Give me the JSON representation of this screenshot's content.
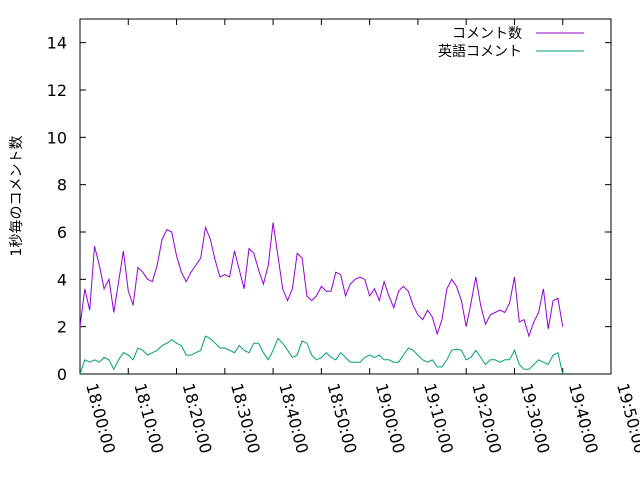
{
  "chart_data": {
    "type": "line",
    "title": "",
    "xlabel": "",
    "ylabel": "1秒毎のコメント数",
    "xlim": [
      "18:00:00",
      "19:50:00"
    ],
    "ylim": [
      0,
      15
    ],
    "x_ticks": [
      "18:00:00",
      "18:10:00",
      "18:20:00",
      "18:30:00",
      "18:40:00",
      "18:50:00",
      "19:00:00",
      "19:10:00",
      "19:20:00",
      "19:30:00",
      "19:40:00",
      "19:50:00"
    ],
    "y_ticks": [
      "0",
      "2",
      "4",
      "6",
      "8",
      "10",
      "12",
      "14"
    ],
    "legend_position": "top-right",
    "grid": false,
    "series": [
      {
        "name": "コメント数",
        "color": "#9400d3",
        "points": [
          [
            "18:00:00",
            2.0
          ],
          [
            "18:01:00",
            3.6
          ],
          [
            "18:02:00",
            2.7
          ],
          [
            "18:03:00",
            5.4
          ],
          [
            "18:04:00",
            4.6
          ],
          [
            "18:05:00",
            3.6
          ],
          [
            "18:06:00",
            4.0
          ],
          [
            "18:07:00",
            2.6
          ],
          [
            "18:08:00",
            3.9
          ],
          [
            "18:09:00",
            5.2
          ],
          [
            "18:10:00",
            3.5
          ],
          [
            "18:11:00",
            2.9
          ],
          [
            "18:12:00",
            4.5
          ],
          [
            "18:13:00",
            4.3
          ],
          [
            "18:14:00",
            4.0
          ],
          [
            "18:15:00",
            3.9
          ],
          [
            "18:16:00",
            4.6
          ],
          [
            "18:17:00",
            5.7
          ],
          [
            "18:18:00",
            6.1
          ],
          [
            "18:19:00",
            6.0
          ],
          [
            "18:20:00",
            5.0
          ],
          [
            "18:21:00",
            4.3
          ],
          [
            "18:22:00",
            3.9
          ],
          [
            "18:23:00",
            4.3
          ],
          [
            "18:24:00",
            4.6
          ],
          [
            "18:25:00",
            4.9
          ],
          [
            "18:26:00",
            6.2
          ],
          [
            "18:27:00",
            5.7
          ],
          [
            "18:28:00",
            4.8
          ],
          [
            "18:29:00",
            4.1
          ],
          [
            "18:30:00",
            4.2
          ],
          [
            "18:31:00",
            4.1
          ],
          [
            "18:32:00",
            5.2
          ],
          [
            "18:33:00",
            4.4
          ],
          [
            "18:34:00",
            3.6
          ],
          [
            "18:35:00",
            5.3
          ],
          [
            "18:36:00",
            5.1
          ],
          [
            "18:37:00",
            4.4
          ],
          [
            "18:38:00",
            3.8
          ],
          [
            "18:39:00",
            4.6
          ],
          [
            "18:40:00",
            6.4
          ],
          [
            "18:41:00",
            5.0
          ],
          [
            "18:42:00",
            3.6
          ],
          [
            "18:43:00",
            3.1
          ],
          [
            "18:44:00",
            3.6
          ],
          [
            "18:45:00",
            5.1
          ],
          [
            "18:46:00",
            4.9
          ],
          [
            "18:47:00",
            3.3
          ],
          [
            "18:48:00",
            3.1
          ],
          [
            "18:49:00",
            3.3
          ],
          [
            "18:50:00",
            3.7
          ],
          [
            "18:51:00",
            3.5
          ],
          [
            "18:52:00",
            3.5
          ],
          [
            "18:53:00",
            4.3
          ],
          [
            "18:54:00",
            4.2
          ],
          [
            "18:55:00",
            3.3
          ],
          [
            "18:56:00",
            3.8
          ],
          [
            "18:57:00",
            4.0
          ],
          [
            "18:58:00",
            4.1
          ],
          [
            "18:59:00",
            4.0
          ],
          [
            "19:00:00",
            3.3
          ],
          [
            "19:01:00",
            3.6
          ],
          [
            "19:02:00",
            3.1
          ],
          [
            "19:03:00",
            3.9
          ],
          [
            "19:04:00",
            3.3
          ],
          [
            "19:05:00",
            2.8
          ],
          [
            "19:06:00",
            3.5
          ],
          [
            "19:07:00",
            3.7
          ],
          [
            "19:08:00",
            3.5
          ],
          [
            "19:09:00",
            2.9
          ],
          [
            "19:10:00",
            2.5
          ],
          [
            "19:11:00",
            2.3
          ],
          [
            "19:12:00",
            2.7
          ],
          [
            "19:13:00",
            2.4
          ],
          [
            "19:14:00",
            1.7
          ],
          [
            "19:15:00",
            2.3
          ],
          [
            "19:16:00",
            3.6
          ],
          [
            "19:17:00",
            4.0
          ],
          [
            "19:18:00",
            3.7
          ],
          [
            "19:19:00",
            3.1
          ],
          [
            "19:20:00",
            2.0
          ],
          [
            "19:21:00",
            3.0
          ],
          [
            "19:22:00",
            4.1
          ],
          [
            "19:23:00",
            2.9
          ],
          [
            "19:24:00",
            2.1
          ],
          [
            "19:25:00",
            2.5
          ],
          [
            "19:26:00",
            2.6
          ],
          [
            "19:27:00",
            2.7
          ],
          [
            "19:28:00",
            2.6
          ],
          [
            "19:29:00",
            3.0
          ],
          [
            "19:30:00",
            4.1
          ],
          [
            "19:31:00",
            2.2
          ],
          [
            "19:32:00",
            2.3
          ],
          [
            "19:33:00",
            1.6
          ],
          [
            "19:34:00",
            2.2
          ],
          [
            "19:35:00",
            2.6
          ],
          [
            "19:36:00",
            3.6
          ],
          [
            "19:37:00",
            1.9
          ],
          [
            "19:38:00",
            3.1
          ],
          [
            "19:39:00",
            3.2
          ],
          [
            "19:40:00",
            2.0
          ]
        ]
      },
      {
        "name": "英語コメント",
        "color": "#009e73",
        "points": [
          [
            "18:00:00",
            0.0
          ],
          [
            "18:01:00",
            0.6
          ],
          [
            "18:02:00",
            0.5
          ],
          [
            "18:03:00",
            0.6
          ],
          [
            "18:04:00",
            0.5
          ],
          [
            "18:05:00",
            0.7
          ],
          [
            "18:06:00",
            0.6
          ],
          [
            "18:07:00",
            0.2
          ],
          [
            "18:08:00",
            0.6
          ],
          [
            "18:09:00",
            0.9
          ],
          [
            "18:10:00",
            0.8
          ],
          [
            "18:11:00",
            0.6
          ],
          [
            "18:12:00",
            1.1
          ],
          [
            "18:13:00",
            1.0
          ],
          [
            "18:14:00",
            0.8
          ],
          [
            "18:15:00",
            0.9
          ],
          [
            "18:16:00",
            1.0
          ],
          [
            "18:17:00",
            1.2
          ],
          [
            "18:18:00",
            1.3
          ],
          [
            "18:19:00",
            1.45
          ],
          [
            "18:20:00",
            1.3
          ],
          [
            "18:21:00",
            1.2
          ],
          [
            "18:22:00",
            0.8
          ],
          [
            "18:23:00",
            0.8
          ],
          [
            "18:24:00",
            0.9
          ],
          [
            "18:25:00",
            1.0
          ],
          [
            "18:26:00",
            1.6
          ],
          [
            "18:27:00",
            1.5
          ],
          [
            "18:28:00",
            1.3
          ],
          [
            "18:29:00",
            1.1
          ],
          [
            "18:30:00",
            1.1
          ],
          [
            "18:31:00",
            1.0
          ],
          [
            "18:32:00",
            0.9
          ],
          [
            "18:33:00",
            1.2
          ],
          [
            "18:34:00",
            1.0
          ],
          [
            "18:35:00",
            0.9
          ],
          [
            "18:36:00",
            1.3
          ],
          [
            "18:37:00",
            1.3
          ],
          [
            "18:38:00",
            0.9
          ],
          [
            "18:39:00",
            0.6
          ],
          [
            "18:40:00",
            1.0
          ],
          [
            "18:41:00",
            1.5
          ],
          [
            "18:42:00",
            1.3
          ],
          [
            "18:43:00",
            1.0
          ],
          [
            "18:44:00",
            0.7
          ],
          [
            "18:45:00",
            0.8
          ],
          [
            "18:46:00",
            1.4
          ],
          [
            "18:47:00",
            1.3
          ],
          [
            "18:48:00",
            0.8
          ],
          [
            "18:49:00",
            0.6
          ],
          [
            "18:50:00",
            0.7
          ],
          [
            "18:51:00",
            0.9
          ],
          [
            "18:52:00",
            0.7
          ],
          [
            "18:53:00",
            0.6
          ],
          [
            "18:54:00",
            0.9
          ],
          [
            "18:55:00",
            0.7
          ],
          [
            "18:56:00",
            0.5
          ],
          [
            "18:57:00",
            0.5
          ],
          [
            "18:58:00",
            0.5
          ],
          [
            "18:59:00",
            0.7
          ],
          [
            "19:00:00",
            0.8
          ],
          [
            "19:01:00",
            0.7
          ],
          [
            "19:02:00",
            0.8
          ],
          [
            "19:03:00",
            0.6
          ],
          [
            "19:04:00",
            0.6
          ],
          [
            "19:05:00",
            0.5
          ],
          [
            "19:06:00",
            0.5
          ],
          [
            "19:07:00",
            0.8
          ],
          [
            "19:08:00",
            1.1
          ],
          [
            "19:09:00",
            1.0
          ],
          [
            "19:10:00",
            0.8
          ],
          [
            "19:11:00",
            0.6
          ],
          [
            "19:12:00",
            0.5
          ],
          [
            "19:13:00",
            0.6
          ],
          [
            "19:14:00",
            0.3
          ],
          [
            "19:15:00",
            0.3
          ],
          [
            "19:16:00",
            0.6
          ],
          [
            "19:17:00",
            1.0
          ],
          [
            "19:18:00",
            1.05
          ],
          [
            "19:19:00",
            1.0
          ],
          [
            "19:20:00",
            0.6
          ],
          [
            "19:21:00",
            0.7
          ],
          [
            "19:22:00",
            1.0
          ],
          [
            "19:23:00",
            0.7
          ],
          [
            "19:24:00",
            0.4
          ],
          [
            "19:25:00",
            0.6
          ],
          [
            "19:26:00",
            0.6
          ],
          [
            "19:27:00",
            0.5
          ],
          [
            "19:28:00",
            0.6
          ],
          [
            "19:29:00",
            0.6
          ],
          [
            "19:30:00",
            1.0
          ],
          [
            "19:31:00",
            0.4
          ],
          [
            "19:32:00",
            0.2
          ],
          [
            "19:33:00",
            0.2
          ],
          [
            "19:34:00",
            0.4
          ],
          [
            "19:35:00",
            0.6
          ],
          [
            "19:36:00",
            0.5
          ],
          [
            "19:37:00",
            0.4
          ],
          [
            "19:38:00",
            0.8
          ],
          [
            "19:39:00",
            0.9
          ],
          [
            "19:40:00",
            0.0
          ]
        ]
      }
    ]
  }
}
